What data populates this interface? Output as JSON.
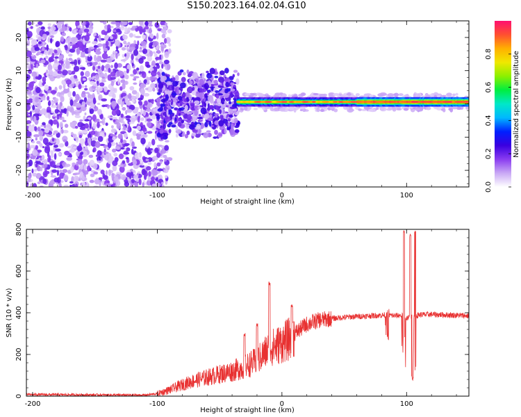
{
  "title": "S150.2023.164.02.04.G10",
  "chart_data": [
    {
      "type": "heatmap",
      "xlabel": "Height of straight line (km)",
      "ylabel": "Frequency (Hz)",
      "xlim": [
        -205,
        150
      ],
      "ylim": [
        -25,
        25
      ],
      "x_ticks": [
        -200,
        -100,
        0,
        100
      ],
      "y_ticks": [
        -20,
        -10,
        0,
        10,
        20
      ],
      "colorbar": {
        "label": "Normalized spectral amplitude",
        "ticks": [
          0.0,
          0.2,
          0.4,
          0.6,
          0.8
        ],
        "range": [
          0,
          1
        ],
        "colors": [
          "#ffffff",
          "#c9a8f5",
          "#8a3cf0",
          "#3a00e0",
          "#0020ff",
          "#00b8ff",
          "#00e8c8",
          "#00ee40",
          "#8cf000",
          "#f0e800",
          "#ffb000",
          "#ff5030",
          "#ff1070"
        ]
      },
      "features": [
        {
          "x_range": [
            -205,
            -100
          ],
          "freq_range": [
            -25,
            25
          ],
          "amplitude": "scattered low (0.05-0.2)"
        },
        {
          "x_range": [
            -100,
            -35
          ],
          "freq_range": [
            -10,
            10
          ],
          "amplitude": "clustered 0.1-0.3"
        },
        {
          "x_range": [
            -35,
            150
          ],
          "center_freq": 0.5,
          "amplitude": "narrow band 0.4-0.95"
        }
      ]
    },
    {
      "type": "line",
      "xlabel": "Height of straight line (km)",
      "ylabel": "SNR (10 * v/v)",
      "xlim": [
        -205,
        150
      ],
      "ylim": [
        0,
        800
      ],
      "x_ticks": [
        -200,
        -100,
        0,
        100
      ],
      "y_ticks": [
        0,
        200,
        400,
        600,
        800
      ],
      "color": "#e83030",
      "envelope": {
        "x": [
          -205,
          -150,
          -110,
          -100,
          -90,
          -80,
          -70,
          -60,
          -50,
          -40,
          -30,
          -20,
          -15,
          -10,
          -5,
          0,
          5,
          10,
          20,
          30,
          40,
          50,
          60,
          70,
          80,
          85,
          90,
          95,
          100,
          105,
          110,
          120,
          130,
          140,
          150
        ],
        "y": [
          8,
          6,
          5,
          12,
          30,
          55,
          75,
          90,
          105,
          120,
          140,
          170,
          200,
          230,
          240,
          255,
          270,
          300,
          345,
          365,
          372,
          378,
          382,
          385,
          388,
          390,
          385,
          388,
          375,
          380,
          390,
          392,
          390,
          388,
          385
        ]
      },
      "spikes": [
        {
          "x": -30,
          "y": 305
        },
        {
          "x": -20,
          "y": 350
        },
        {
          "x": -10,
          "y": 550
        },
        {
          "x": 8,
          "y": 440
        },
        {
          "x": 85,
          "y": 290
        },
        {
          "x": 98,
          "y": 800
        },
        {
          "x": 103,
          "y": 780
        },
        {
          "x": 107,
          "y": 800
        },
        {
          "x": 105,
          "y": 90
        }
      ]
    }
  ]
}
